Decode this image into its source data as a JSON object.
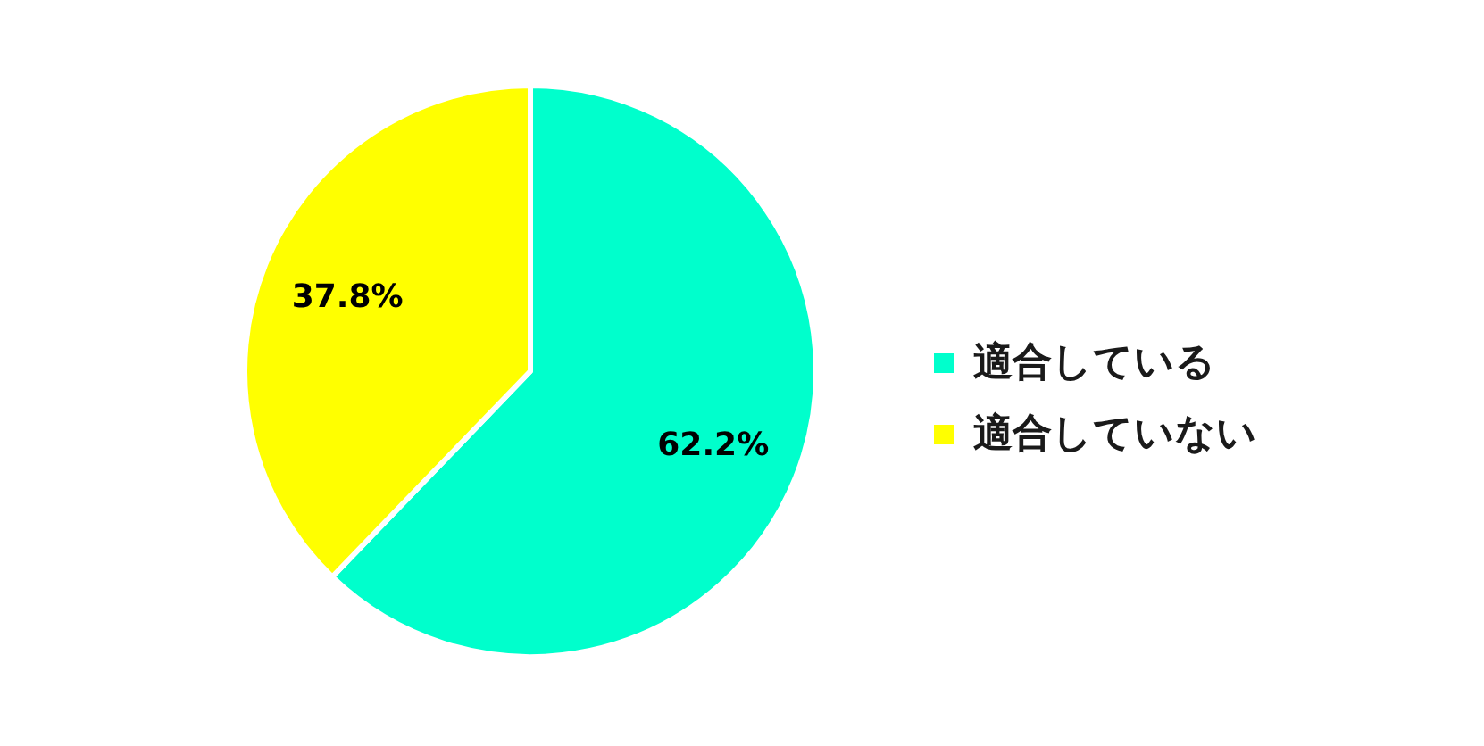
{
  "chart_data": {
    "type": "pie",
    "categories": [
      "適合している",
      "適合していない"
    ],
    "values": [
      62.2,
      37.8
    ],
    "colors": [
      "#00ffcc",
      "#ffff00"
    ],
    "value_labels": [
      "62.2%",
      "37.8%"
    ],
    "legend": "right"
  }
}
